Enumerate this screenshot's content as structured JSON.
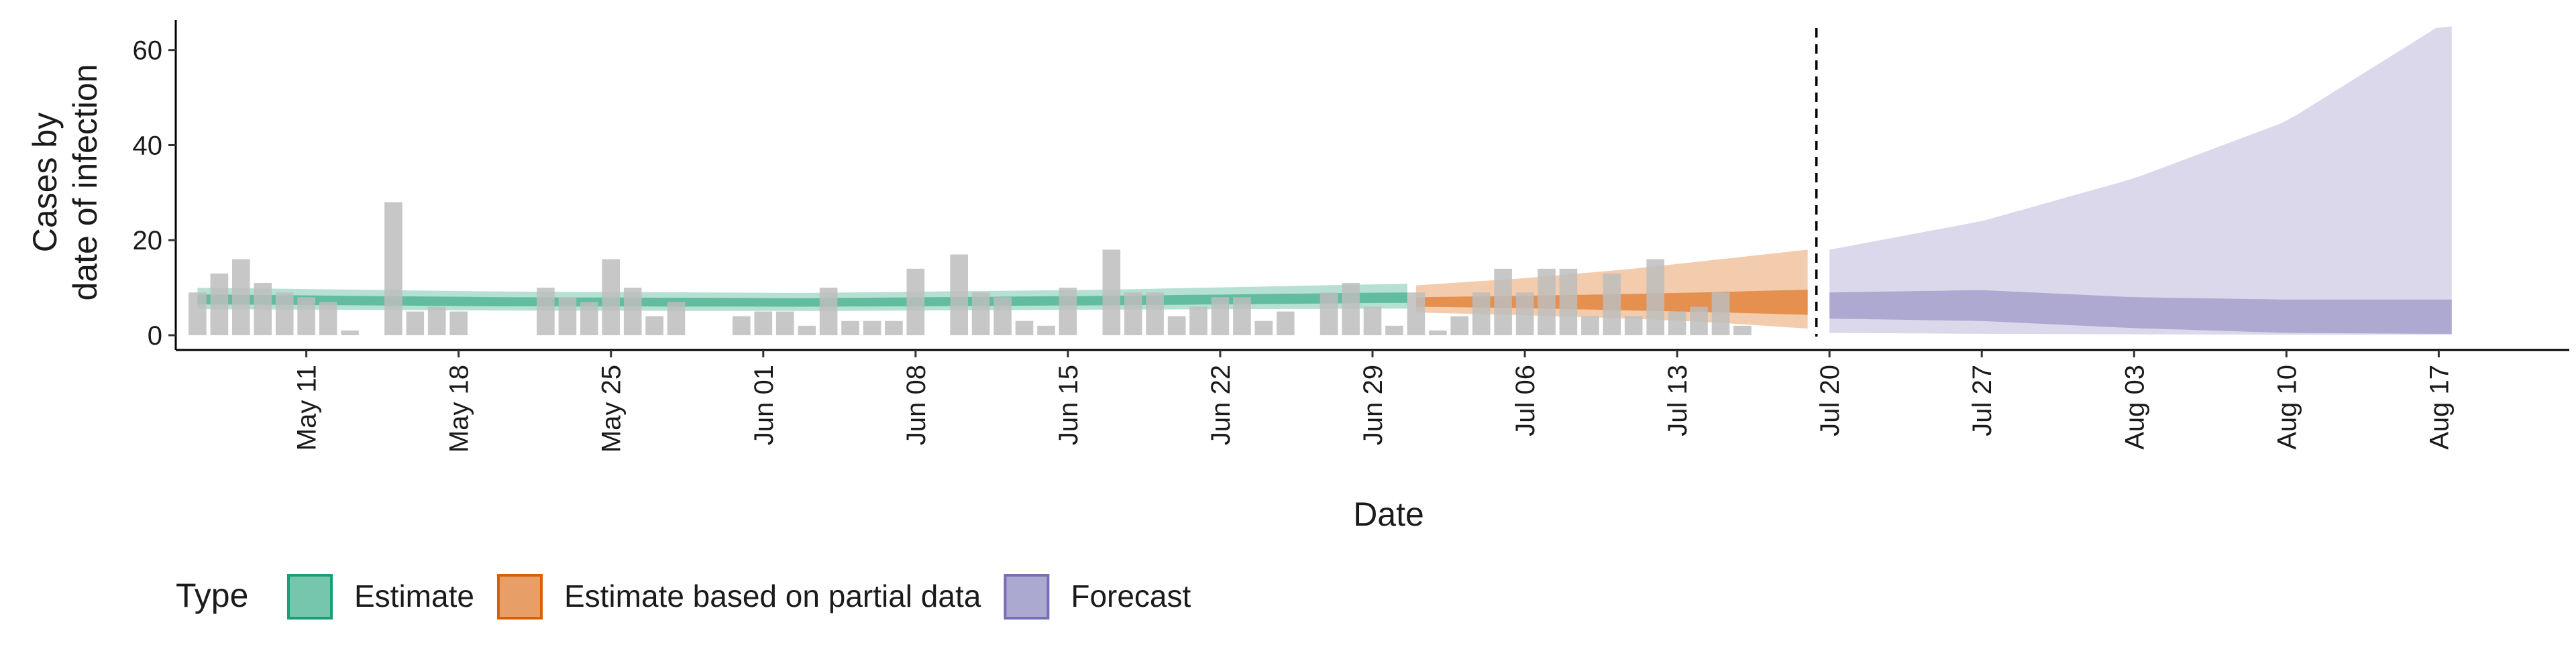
{
  "chart_data": {
    "type": "bar",
    "xlabel": "Date",
    "ylabel_lines": [
      "Cases by",
      "date of infection"
    ],
    "ylim": [
      0,
      68
    ],
    "yticks": [
      0,
      20,
      40,
      60
    ],
    "x_range": [
      "2020-05-05",
      "2020-08-23"
    ],
    "x_ticks": [
      {
        "date": "2020-05-11",
        "label": "May 11"
      },
      {
        "date": "2020-05-18",
        "label": "May 18"
      },
      {
        "date": "2020-05-25",
        "label": "May 25"
      },
      {
        "date": "2020-06-01",
        "label": "Jun 01"
      },
      {
        "date": "2020-06-08",
        "label": "Jun 08"
      },
      {
        "date": "2020-06-15",
        "label": "Jun 15"
      },
      {
        "date": "2020-06-22",
        "label": "Jun 22"
      },
      {
        "date": "2020-06-29",
        "label": "Jun 29"
      },
      {
        "date": "2020-07-06",
        "label": "Jul 06"
      },
      {
        "date": "2020-07-13",
        "label": "Jul 13"
      },
      {
        "date": "2020-07-20",
        "label": "Jul 20"
      },
      {
        "date": "2020-07-27",
        "label": "Jul 27"
      },
      {
        "date": "2020-08-03",
        "label": "Aug 03"
      },
      {
        "date": "2020-08-10",
        "label": "Aug 10"
      },
      {
        "date": "2020-08-17",
        "label": "Aug 17"
      }
    ],
    "forecast_date": "2020-07-19",
    "reported_cases": {
      "start_date": "2020-05-06",
      "values": [
        9,
        13,
        16,
        11,
        9,
        8,
        7,
        1,
        0,
        28,
        5,
        6,
        5,
        0,
        0,
        0,
        10,
        8,
        7,
        16,
        10,
        4,
        7,
        0,
        0,
        4,
        5,
        5,
        2,
        10,
        3,
        3,
        3,
        14,
        0,
        17,
        9,
        8,
        3,
        2,
        10,
        0,
        18,
        9,
        9,
        4,
        6,
        8,
        8,
        3,
        5,
        0,
        9,
        11,
        6,
        2,
        9,
        1,
        4,
        9,
        14,
        9,
        14,
        14,
        4,
        13,
        4,
        16,
        5,
        6,
        9,
        2
      ]
    },
    "series": [
      {
        "name": "Estimate",
        "color": "#1b9e77",
        "dates": [
          "2020-05-06",
          "2020-05-20",
          "2020-06-03",
          "2020-06-17",
          "2020-06-30"
        ],
        "median": [
          7.5,
          7.0,
          6.8,
          7.2,
          7.8
        ],
        "lower_50": [
          6.5,
          6.1,
          6.0,
          6.3,
          6.8
        ],
        "upper_50": [
          8.6,
          8.0,
          7.8,
          8.3,
          9.0
        ],
        "lower_90": [
          5.5,
          5.2,
          5.1,
          5.4,
          5.6
        ],
        "upper_90": [
          10.0,
          9.2,
          8.9,
          9.6,
          10.8
        ]
      },
      {
        "name": "Estimate based on partial data",
        "color": "#d95f02",
        "dates": [
          "2020-07-01",
          "2020-07-06",
          "2020-07-11",
          "2020-07-15",
          "2020-07-19"
        ],
        "median": [
          7.0,
          6.9,
          6.8,
          6.6,
          6.5
        ],
        "lower_50": [
          6.0,
          5.7,
          5.2,
          4.8,
          4.3
        ],
        "upper_50": [
          8.0,
          8.3,
          8.7,
          9.1,
          9.6
        ],
        "lower_90": [
          4.8,
          4.2,
          3.5,
          2.6,
          1.4
        ],
        "upper_90": [
          10.5,
          12.0,
          14.0,
          16.0,
          18.0
        ]
      },
      {
        "name": "Forecast",
        "color": "#7570b3",
        "dates": [
          "2020-07-20",
          "2020-07-27",
          "2020-08-03",
          "2020-08-10",
          "2020-08-17"
        ],
        "median": [
          6.0,
          6.2,
          5.8,
          5.5,
          5.5
        ],
        "lower_50": [
          3.5,
          3.0,
          1.5,
          0.5,
          0.3
        ],
        "upper_50": [
          9.0,
          9.5,
          8.0,
          7.5,
          7.5
        ],
        "lower_90": [
          0.5,
          0.3,
          0.2,
          0.1,
          0.1
        ],
        "upper_90": [
          18.0,
          24.0,
          33.0,
          45.0,
          65.0
        ]
      }
    ],
    "legend": {
      "title": "Type",
      "position": "bottom",
      "items": [
        "Estimate",
        "Estimate based on partial data",
        "Forecast"
      ]
    },
    "grid": false,
    "colors": {
      "bars": "#bdbdbd",
      "vline": "#000000"
    }
  }
}
